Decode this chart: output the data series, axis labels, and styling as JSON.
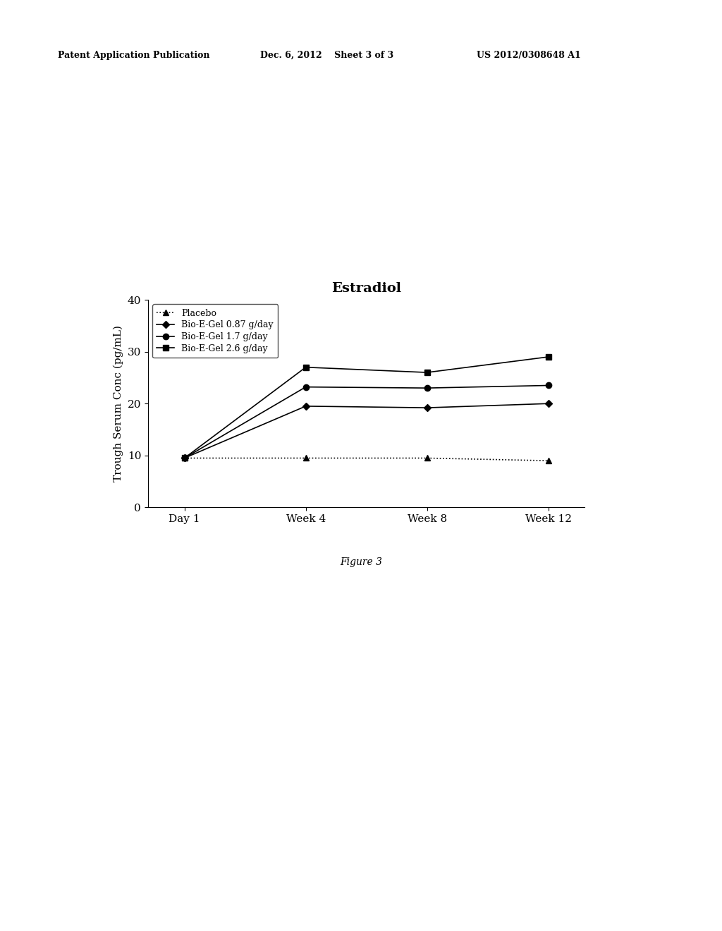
{
  "title": "Estradiol",
  "ylabel": "Trough Serum Conc (pg/mL)",
  "xlabel_ticks": [
    "Day 1",
    "Week 4",
    "Week 8",
    "Week 12"
  ],
  "x_positions": [
    0,
    1,
    2,
    3
  ],
  "ylim": [
    0,
    40
  ],
  "yticks": [
    0,
    10,
    20,
    30,
    40
  ],
  "series": [
    {
      "label": "Placebo",
      "values": [
        9.5,
        9.5,
        9.5,
        9.0
      ],
      "color": "#000000",
      "linestyle": "dotted",
      "marker": "^",
      "markersize": 6,
      "linewidth": 1.2
    },
    {
      "label": "Bio-E-Gel 0.87 g/day",
      "values": [
        9.5,
        19.5,
        19.2,
        20.0
      ],
      "color": "#000000",
      "linestyle": "solid",
      "marker": "D",
      "markersize": 5,
      "linewidth": 1.2
    },
    {
      "label": "Bio-E-Gel 1.7 g/day",
      "values": [
        9.5,
        23.2,
        23.0,
        23.5
      ],
      "color": "#000000",
      "linestyle": "solid",
      "marker": "o",
      "markersize": 6,
      "linewidth": 1.2
    },
    {
      "label": "Bio-E-Gel 2.6 g/day",
      "values": [
        9.5,
        27.0,
        26.0,
        29.0
      ],
      "color": "#000000",
      "linestyle": "solid",
      "marker": "s",
      "markersize": 6,
      "linewidth": 1.2
    }
  ],
  "header_left": "Patent Application Publication",
  "header_mid": "Dec. 6, 2012    Sheet 3 of 3",
  "header_right": "US 2012/0308648 A1",
  "figure_label": "Figure 3",
  "background_color": "#ffffff",
  "title_fontsize": 14,
  "axis_fontsize": 11,
  "legend_fontsize": 9,
  "header_fontsize": 9,
  "figure_label_fontsize": 10
}
